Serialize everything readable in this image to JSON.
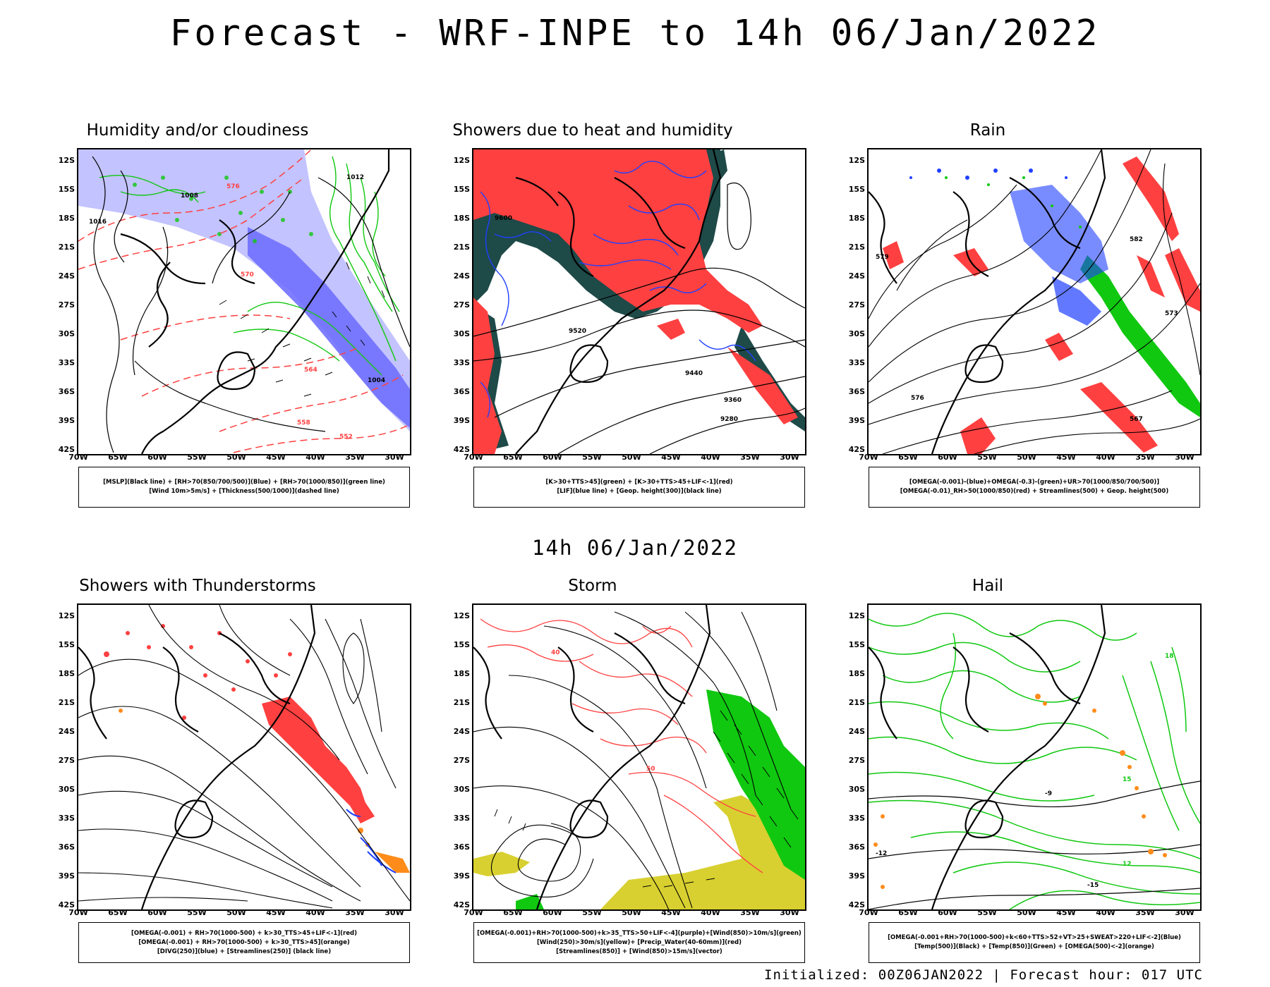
{
  "header": {
    "title": "Forecast - WRF-INPE to 14h 06/Jan/2022",
    "subtitle": "14h 06/Jan/2022"
  },
  "footer": {
    "text": "Initialized: 00Z06JAN2022 | Forecast hour: 017 UTC"
  },
  "axes": {
    "lat_labels": [
      "12S",
      "15S",
      "18S",
      "21S",
      "24S",
      "27S",
      "30S",
      "33S",
      "36S",
      "39S",
      "42S"
    ],
    "lon_labels": [
      "70W",
      "65W",
      "60W",
      "55W",
      "50W",
      "45W",
      "40W",
      "35W",
      "30W"
    ]
  },
  "colors": {
    "red": "#ff4040",
    "green": "#10c810",
    "blue": "#2040ff",
    "purple_fill": "#7070ff",
    "light_purple": "#b8b8ff",
    "dark_teal": "#1e4a48",
    "orange": "#ff8c1a",
    "yellow": "#d8d030"
  },
  "panels": [
    {
      "title": "Humidity and/or cloudiness",
      "legend": [
        "[MSLP](Black line) + [RH>70(850/700/500)](Blue) + [RH>70(1000/850)](green line)",
        "[Wind 10m>5m/s] + [Thickness(500/1000)](dashed line)"
      ],
      "contour_labels": [
        "1012",
        "1008",
        "1016",
        "1004",
        "576",
        "570",
        "564",
        "558",
        "552"
      ]
    },
    {
      "title": "Showers due to heat and humidity",
      "legend": [
        "[K>30+TTS>45](green) + [K>30+TTS>45+LIF<-1](red)",
        "[LIF](blue line) + [Geop. height(300)](black line)"
      ],
      "contour_labels": [
        "9600",
        "9520",
        "9440",
        "9360",
        "9280"
      ]
    },
    {
      "title": "Rain",
      "legend": [
        "[OMEGA(-0.001)-(blue)+OMEGA(-0.3)-(green)+UR>70(1000/850/700/500)]",
        "[OMEGA(-0.01)_RH>50(1000/850)(red) + Streamlines(500) + Geop. height(500)"
      ],
      "contour_labels": [
        "582",
        "579",
        "576",
        "573",
        "567"
      ]
    },
    {
      "title": "Showers with Thunderstorms",
      "legend": [
        "[OMEGA(-0.001) + RH>70(1000-500) + k>30_TTS>45+LIF<-1](red)",
        "[OMEGA(-0.001) + RH>70(1000-500) + k>30_TTS>45](orange)",
        "[DIVG(250)](blue) + [Streamlines(250)] (black line)"
      ],
      "contour_labels": []
    },
    {
      "title": "Storm",
      "legend": [
        "[OMEGA(-0.001)+RH>70(1000-500)+k>35_TTS>50+LIF<-4](purple)+[Wind(850)>10m/s](green)",
        "[Wind(250)>30m/s](yellow)+ [Precip_Water(40-60mm)](red)",
        "[Streamlines(850)] + [Wind(850)>15m/s](vector)"
      ],
      "contour_labels": [
        "50",
        "40"
      ]
    },
    {
      "title": "Hail",
      "legend": [
        "[OMEGA(-0.001+RH>70(1000-500)+k<60+TTS>52+VT>25+SWEAT>220+LIF<-2](Blue)",
        "[Temp(500)](Black) + [Temp(850)](Green) + [OMEGA(500)<-2](orange)"
      ],
      "contour_labels": [
        "-9",
        "-12",
        "-15",
        "18",
        "15",
        "12"
      ]
    }
  ]
}
